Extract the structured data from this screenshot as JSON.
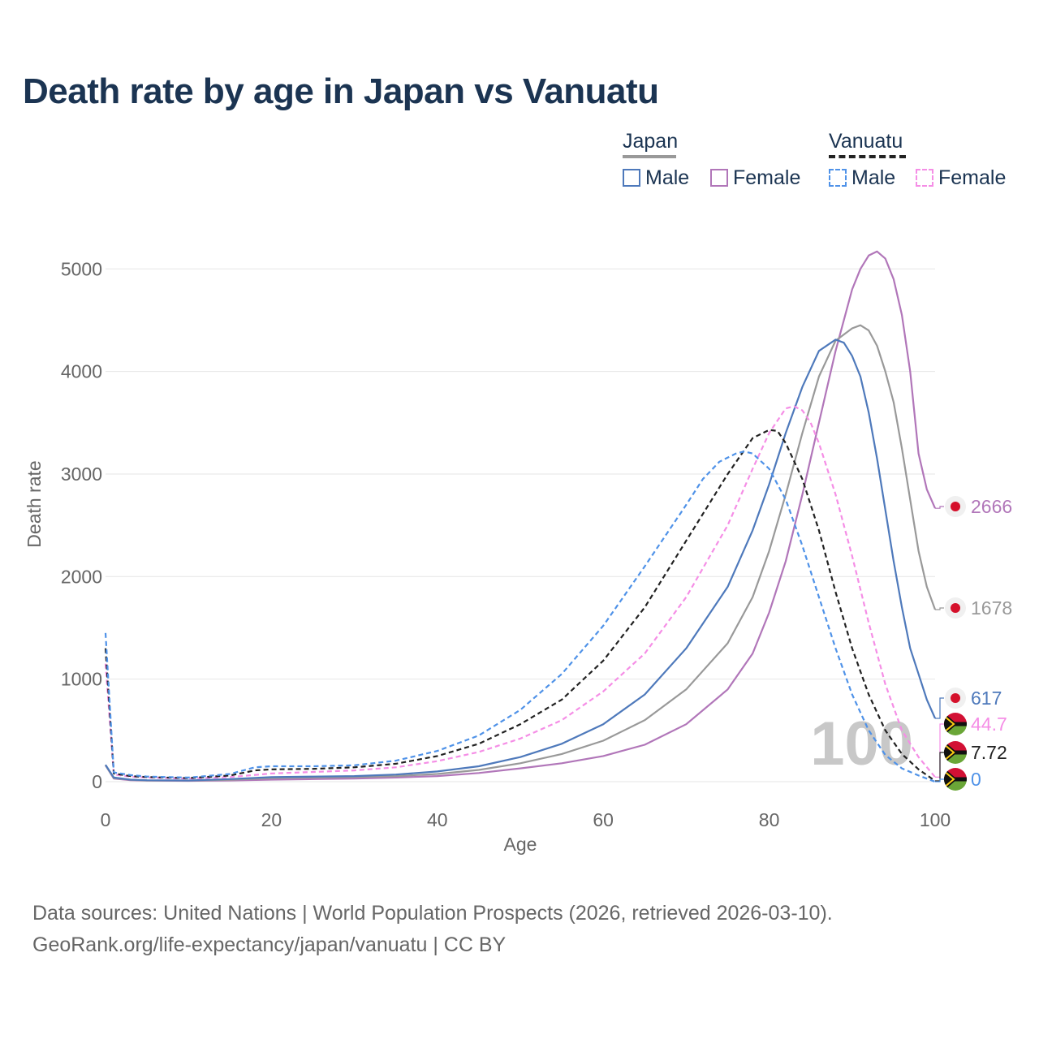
{
  "title": "Death rate by age in Japan vs Vanuatu",
  "legend": {
    "groups": [
      {
        "name": "Japan",
        "underline_color": "#999999",
        "underline_dash": false,
        "items": [
          {
            "label": "Male",
            "color": "#4e79bb",
            "dashed": false
          },
          {
            "label": "Female",
            "color": "#b176b9",
            "dashed": false
          }
        ]
      },
      {
        "name": "Vanuatu",
        "underline_color": "#222222",
        "underline_dash": true,
        "items": [
          {
            "label": "Male",
            "color": "#4f92e8",
            "dashed": true
          },
          {
            "label": "Female",
            "color": "#f58ee6",
            "dashed": true
          }
        ]
      }
    ]
  },
  "source": {
    "line1": "Data sources: United Nations | World Population Prospects (2026, retrieved 2026-03-10).",
    "line2": "GeoRank.org/life-expectancy/japan/vanuatu | CC BY"
  },
  "chart_data": {
    "type": "line",
    "title": "Death rate by age in Japan vs Vanuatu",
    "xlabel": "Age",
    "ylabel": "Death rate",
    "xlim": [
      0,
      100
    ],
    "ylim": [
      0,
      5300
    ],
    "x_ticks": [
      0,
      20,
      40,
      60,
      80,
      100
    ],
    "y_ticks": [
      0,
      1000,
      2000,
      3000,
      4000,
      5000
    ],
    "grid": true,
    "legend_position": "top-right",
    "watermark": "100",
    "series": [
      {
        "name": "Japan Female",
        "country": "Japan",
        "sex": "Female",
        "color": "#b176b9",
        "dashed": false,
        "end_label": "2666",
        "flag": "japan",
        "points": [
          [
            0,
            160
          ],
          [
            1,
            30
          ],
          [
            3,
            15
          ],
          [
            5,
            10
          ],
          [
            10,
            8
          ],
          [
            15,
            12
          ],
          [
            20,
            20
          ],
          [
            25,
            25
          ],
          [
            30,
            30
          ],
          [
            35,
            40
          ],
          [
            40,
            55
          ],
          [
            45,
            85
          ],
          [
            50,
            130
          ],
          [
            55,
            180
          ],
          [
            60,
            250
          ],
          [
            65,
            360
          ],
          [
            70,
            560
          ],
          [
            75,
            900
          ],
          [
            78,
            1250
          ],
          [
            80,
            1650
          ],
          [
            82,
            2150
          ],
          [
            84,
            2800
          ],
          [
            86,
            3500
          ],
          [
            88,
            4200
          ],
          [
            90,
            4800
          ],
          [
            91,
            5000
          ],
          [
            92,
            5130
          ],
          [
            93,
            5170
          ],
          [
            94,
            5100
          ],
          [
            95,
            4900
          ],
          [
            96,
            4550
          ],
          [
            97,
            4000
          ],
          [
            98,
            3200
          ],
          [
            99,
            2850
          ],
          [
            100,
            2666
          ]
        ]
      },
      {
        "name": "Japan Total",
        "country": "Japan",
        "sex": "Both",
        "color": "#999999",
        "dashed": false,
        "end_label": "1678",
        "flag": "japan",
        "points": [
          [
            0,
            160
          ],
          [
            1,
            35
          ],
          [
            3,
            18
          ],
          [
            5,
            12
          ],
          [
            10,
            10
          ],
          [
            15,
            18
          ],
          [
            20,
            35
          ],
          [
            25,
            40
          ],
          [
            30,
            45
          ],
          [
            35,
            55
          ],
          [
            40,
            75
          ],
          [
            45,
            115
          ],
          [
            50,
            180
          ],
          [
            55,
            270
          ],
          [
            60,
            400
          ],
          [
            65,
            600
          ],
          [
            70,
            900
          ],
          [
            75,
            1350
          ],
          [
            78,
            1800
          ],
          [
            80,
            2250
          ],
          [
            82,
            2800
          ],
          [
            84,
            3400
          ],
          [
            86,
            3950
          ],
          [
            88,
            4300
          ],
          [
            90,
            4420
          ],
          [
            91,
            4450
          ],
          [
            92,
            4400
          ],
          [
            93,
            4250
          ],
          [
            94,
            4000
          ],
          [
            95,
            3700
          ],
          [
            96,
            3250
          ],
          [
            97,
            2750
          ],
          [
            98,
            2250
          ],
          [
            99,
            1900
          ],
          [
            100,
            1678
          ]
        ]
      },
      {
        "name": "Japan Male",
        "country": "Japan",
        "sex": "Male",
        "color": "#4e79bb",
        "dashed": false,
        "end_label": "617",
        "flag": "japan",
        "points": [
          [
            0,
            165
          ],
          [
            1,
            40
          ],
          [
            3,
            20
          ],
          [
            5,
            14
          ],
          [
            10,
            12
          ],
          [
            15,
            25
          ],
          [
            20,
            45
          ],
          [
            25,
            50
          ],
          [
            30,
            55
          ],
          [
            35,
            70
          ],
          [
            40,
            100
          ],
          [
            45,
            150
          ],
          [
            50,
            240
          ],
          [
            55,
            370
          ],
          [
            60,
            560
          ],
          [
            65,
            850
          ],
          [
            70,
            1300
          ],
          [
            75,
            1900
          ],
          [
            78,
            2450
          ],
          [
            80,
            2900
          ],
          [
            82,
            3400
          ],
          [
            84,
            3850
          ],
          [
            86,
            4200
          ],
          [
            88,
            4310
          ],
          [
            89,
            4280
          ],
          [
            90,
            4150
          ],
          [
            91,
            3950
          ],
          [
            92,
            3600
          ],
          [
            93,
            3150
          ],
          [
            94,
            2650
          ],
          [
            95,
            2150
          ],
          [
            96,
            1700
          ],
          [
            97,
            1300
          ],
          [
            98,
            1050
          ],
          [
            99,
            800
          ],
          [
            100,
            617
          ]
        ]
      },
      {
        "name": "Vanuatu Female",
        "country": "Vanuatu",
        "sex": "Female",
        "color": "#f58ee6",
        "dashed": true,
        "end_label": "44.7",
        "flag": "vanuatu",
        "points": [
          [
            0,
            1150
          ],
          [
            1,
            70
          ],
          [
            3,
            50
          ],
          [
            5,
            40
          ],
          [
            10,
            30
          ],
          [
            15,
            45
          ],
          [
            20,
            80
          ],
          [
            25,
            95
          ],
          [
            30,
            110
          ],
          [
            35,
            140
          ],
          [
            40,
            200
          ],
          [
            45,
            290
          ],
          [
            50,
            420
          ],
          [
            55,
            600
          ],
          [
            60,
            880
          ],
          [
            65,
            1250
          ],
          [
            70,
            1800
          ],
          [
            75,
            2500
          ],
          [
            78,
            3050
          ],
          [
            80,
            3400
          ],
          [
            82,
            3640
          ],
          [
            83,
            3660
          ],
          [
            84,
            3620
          ],
          [
            85,
            3500
          ],
          [
            86,
            3300
          ],
          [
            88,
            2800
          ],
          [
            90,
            2200
          ],
          [
            92,
            1550
          ],
          [
            94,
            950
          ],
          [
            96,
            500
          ],
          [
            98,
            240
          ],
          [
            100,
            44.7
          ]
        ]
      },
      {
        "name": "Vanuatu Total",
        "country": "Vanuatu",
        "sex": "Both",
        "color": "#222222",
        "dashed": true,
        "end_label": "7.72",
        "flag": "vanuatu",
        "points": [
          [
            0,
            1300
          ],
          [
            1,
            80
          ],
          [
            3,
            55
          ],
          [
            5,
            45
          ],
          [
            10,
            35
          ],
          [
            15,
            60
          ],
          [
            18,
            110
          ],
          [
            20,
            120
          ],
          [
            25,
            125
          ],
          [
            30,
            140
          ],
          [
            35,
            175
          ],
          [
            40,
            250
          ],
          [
            45,
            370
          ],
          [
            50,
            560
          ],
          [
            55,
            800
          ],
          [
            60,
            1180
          ],
          [
            65,
            1700
          ],
          [
            70,
            2350
          ],
          [
            75,
            3000
          ],
          [
            78,
            3350
          ],
          [
            80,
            3430
          ],
          [
            81,
            3420
          ],
          [
            82,
            3300
          ],
          [
            84,
            2950
          ],
          [
            86,
            2450
          ],
          [
            88,
            1850
          ],
          [
            90,
            1300
          ],
          [
            92,
            850
          ],
          [
            94,
            500
          ],
          [
            96,
            270
          ],
          [
            98,
            120
          ],
          [
            100,
            7.72
          ]
        ]
      },
      {
        "name": "Vanuatu Male",
        "country": "Vanuatu",
        "sex": "Male",
        "color": "#4f92e8",
        "dashed": true,
        "end_label": "0",
        "flag": "vanuatu",
        "points": [
          [
            0,
            1450
          ],
          [
            1,
            90
          ],
          [
            3,
            65
          ],
          [
            5,
            50
          ],
          [
            10,
            40
          ],
          [
            15,
            75
          ],
          [
            18,
            140
          ],
          [
            20,
            150
          ],
          [
            25,
            150
          ],
          [
            30,
            160
          ],
          [
            35,
            205
          ],
          [
            40,
            300
          ],
          [
            45,
            450
          ],
          [
            50,
            700
          ],
          [
            55,
            1050
          ],
          [
            60,
            1520
          ],
          [
            65,
            2100
          ],
          [
            70,
            2700
          ],
          [
            72,
            2950
          ],
          [
            74,
            3120
          ],
          [
            76,
            3200
          ],
          [
            77,
            3220
          ],
          [
            78,
            3200
          ],
          [
            80,
            3050
          ],
          [
            82,
            2750
          ],
          [
            84,
            2300
          ],
          [
            86,
            1800
          ],
          [
            88,
            1300
          ],
          [
            90,
            850
          ],
          [
            92,
            500
          ],
          [
            94,
            260
          ],
          [
            96,
            130
          ],
          [
            98,
            60
          ],
          [
            100,
            0
          ]
        ]
      }
    ]
  }
}
